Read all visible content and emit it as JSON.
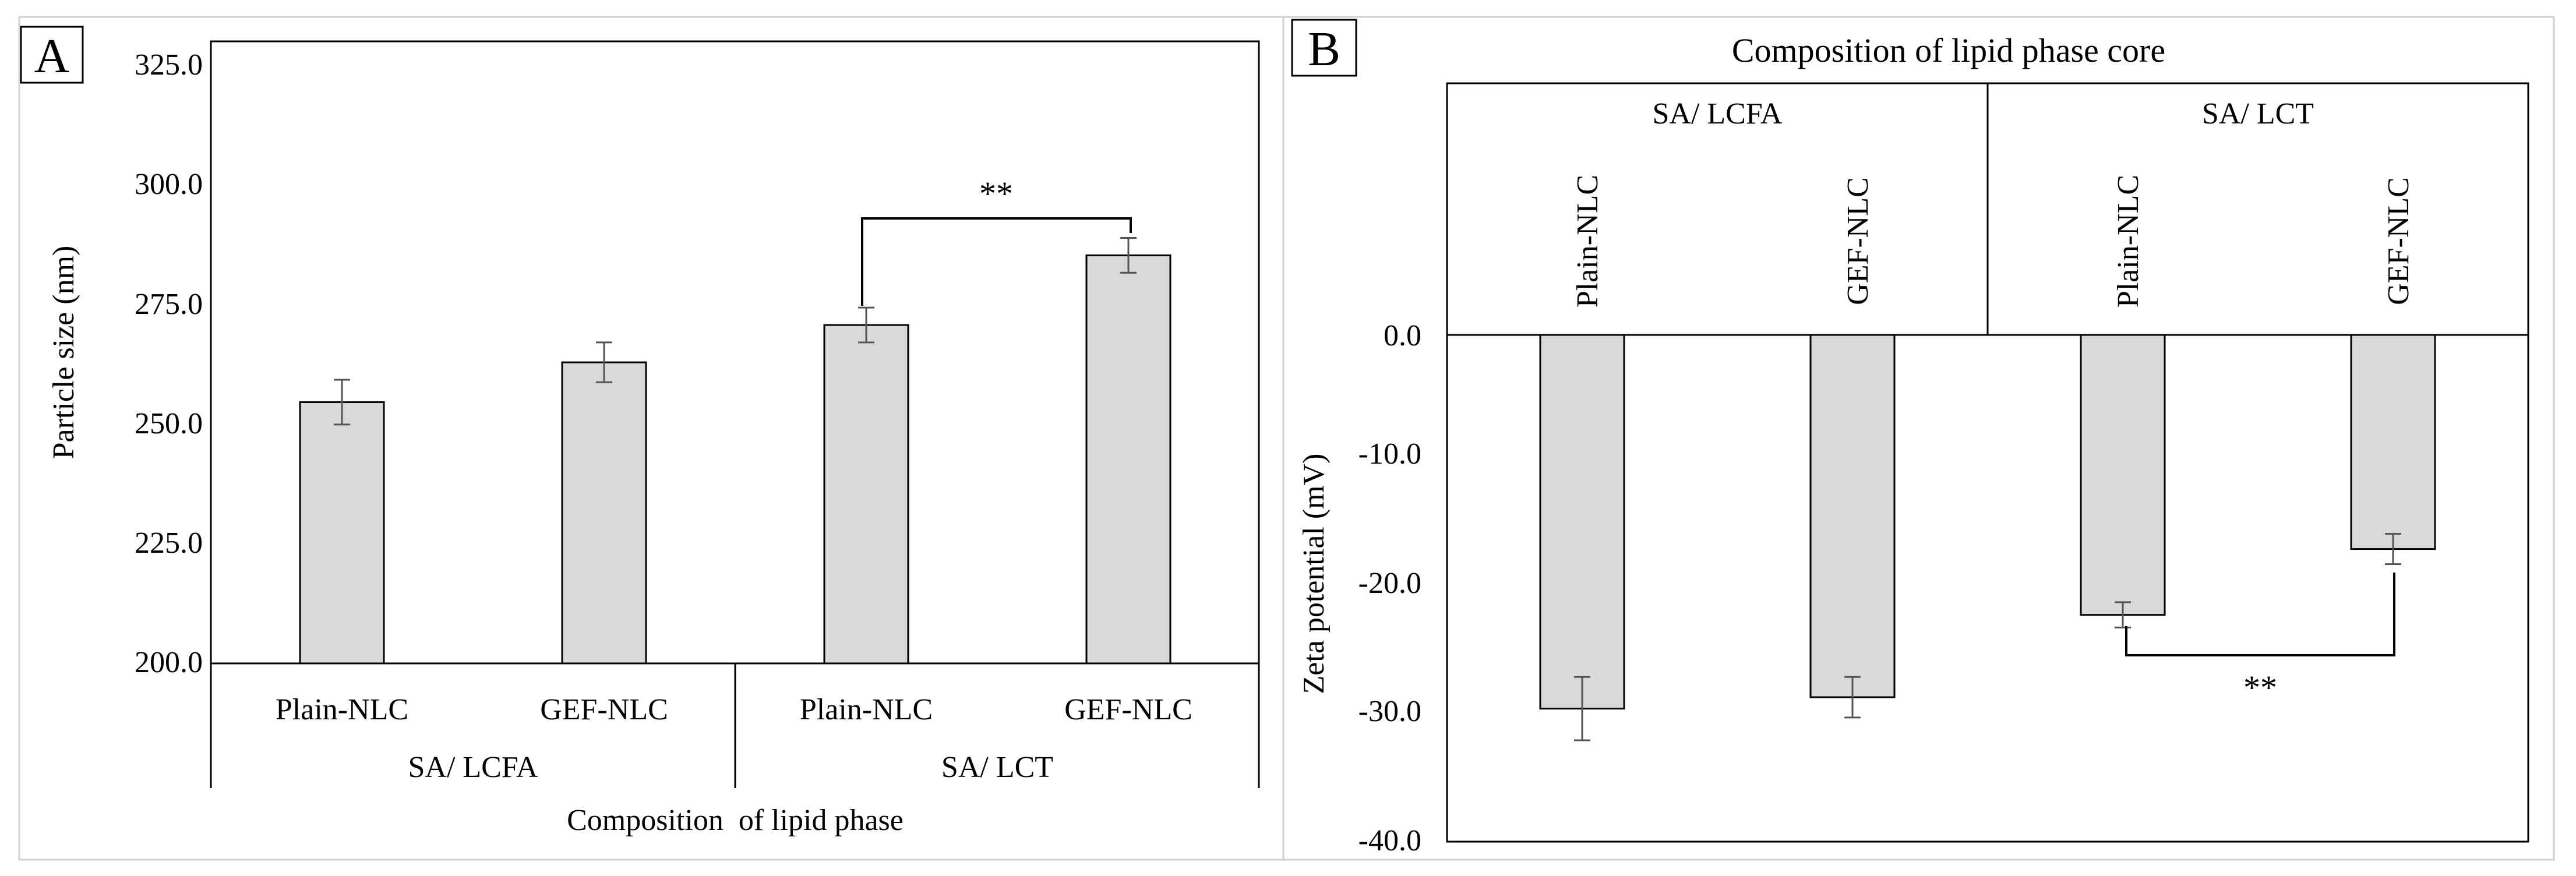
{
  "colors": {
    "bar_fill": "#d9d9d9",
    "bar_stroke": "#000000",
    "error_bar": "#555555",
    "axis": "#000000",
    "panel_border": "#cfcfcf",
    "text": "#000000"
  },
  "chart_data": [
    {
      "panel_label": "A",
      "type": "bar",
      "title": "",
      "xlabel": "Composition  of lipid phase",
      "ylabel": "Particle size (nm)",
      "ylim": [
        200,
        325
      ],
      "yticks": [
        "200.0",
        "225.0",
        "250.0",
        "275.0",
        "300.0",
        "325.0"
      ],
      "grid": false,
      "categories": [
        "Plain-NLC",
        "GEF-NLC",
        "Plain-NLC",
        "GEF-NLC"
      ],
      "groups": [
        {
          "label": "SA/ LCFA",
          "categories": [
            "Plain-NLC",
            "GEF-NLC"
          ]
        },
        {
          "label": "SA/ LCT",
          "categories": [
            "Plain-NLC",
            "GEF-NLC"
          ]
        }
      ],
      "series": [
        {
          "name": "Particle size",
          "values": [
            252.5,
            260.5,
            268.0,
            282.0
          ],
          "errors": [
            4.5,
            4.0,
            3.5,
            3.5
          ]
        }
      ],
      "annotations": [
        {
          "text": "**",
          "between": [
            2,
            3
          ],
          "bracket": "top"
        }
      ]
    },
    {
      "panel_label": "B",
      "type": "bar",
      "title": "Composition of lipid phase core",
      "xlabel": "",
      "ylabel": "Zeta potential (mV)",
      "ylim": [
        -40,
        0
      ],
      "yticks": [
        "-40.0",
        "-30.0",
        "-20.0",
        "-10.0",
        "0.0"
      ],
      "grid": false,
      "categories": [
        "Plain-NLC",
        "GEF-NLC",
        "Plain-NLC",
        "GEF-NLC"
      ],
      "groups": [
        {
          "label": "SA/ LCFA",
          "categories": [
            "Plain-NLC",
            "GEF-NLC"
          ]
        },
        {
          "label": "SA/ LCT",
          "categories": [
            "Plain-NLC",
            "GEF-NLC"
          ]
        }
      ],
      "series": [
        {
          "name": "Zeta potential",
          "values": [
            -29.5,
            -28.6,
            -22.1,
            -16.9
          ],
          "errors": [
            2.5,
            1.6,
            1.0,
            1.2
          ]
        }
      ],
      "annotations": [
        {
          "text": "**",
          "between": [
            2,
            3
          ],
          "bracket": "bottom"
        }
      ]
    }
  ]
}
